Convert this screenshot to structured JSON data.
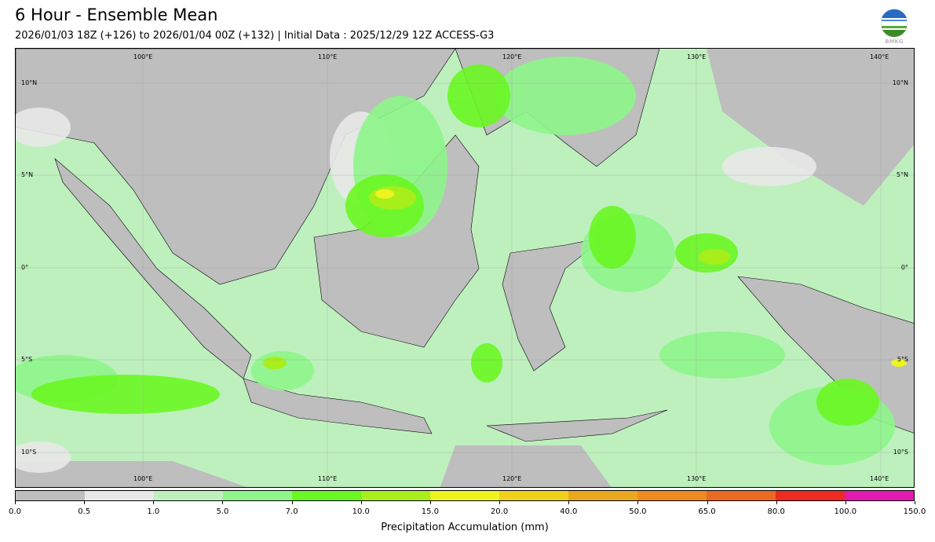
{
  "title": "6 Hour - Ensemble Mean",
  "subtitle": "2026/01/03 18Z (+126) to 2026/01/04 00Z (+132) | Initial Data : 2025/12/29 12Z ACCESS-G3",
  "logo": {
    "text": "BMKG"
  },
  "map": {
    "lon_labels": [
      "100°E",
      "110°E",
      "120°E",
      "130°E",
      "140°E"
    ],
    "lat_labels": [
      "10°N",
      "5°N",
      "0°",
      "5°S",
      "10°S"
    ]
  },
  "colorbar": {
    "label": "Precipitation Accumulation (mm)",
    "ticks": [
      "0.0",
      "0.5",
      "1.0",
      "5.0",
      "7.0",
      "10.0",
      "15.0",
      "20.0",
      "40.0",
      "50.0",
      "65.0",
      "80.0",
      "100.0",
      "150.0"
    ],
    "colors": [
      "#bebebe",
      "#e8e8e8",
      "#bef0be",
      "#8ef58a",
      "#6af722",
      "#a8ee1b",
      "#eef41e",
      "#f0d11a",
      "#eaa81e",
      "#ee8a1f",
      "#ea6a22",
      "#ee2a22",
      "#e31ab2"
    ]
  }
}
